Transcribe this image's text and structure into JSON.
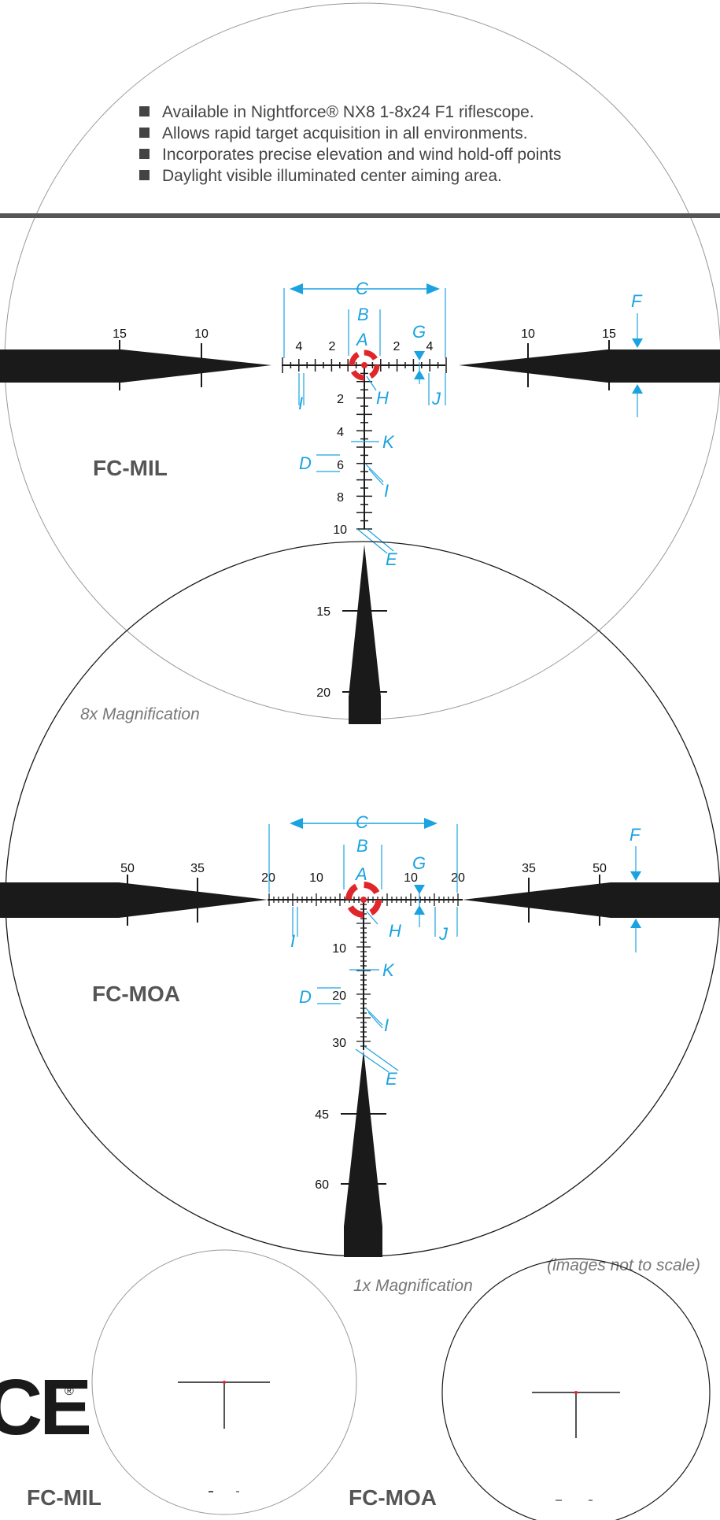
{
  "colors": {
    "accent": "#1aa3e0",
    "reticle": "#1a1a1a",
    "center": "#e0262a",
    "title": "#555555"
  },
  "features": [
    "Available in Nightforce® NX8 1-8x24 F1 riflescope.",
    "Allows rapid target acquisition in all environments.",
    "Incorporates precise elevation and wind hold-off points",
    "Daylight visible illuminated center aiming area."
  ],
  "mil": {
    "name": "FC-MIL",
    "h_left": [
      "15",
      "10",
      "4",
      "2"
    ],
    "h_right": [
      "2",
      "4",
      "10",
      "15"
    ],
    "v": [
      "2",
      "4",
      "6",
      "8",
      "10",
      "15",
      "20"
    ],
    "callouts": [
      "A",
      "B",
      "C",
      "D",
      "E",
      "F",
      "G",
      "H",
      "I",
      "I",
      "J",
      "K"
    ]
  },
  "moa": {
    "name": "FC-MOA",
    "h_left": [
      "50",
      "35",
      "20",
      "10"
    ],
    "h_right": [
      "10",
      "20",
      "35",
      "50"
    ],
    "v": [
      "10",
      "20",
      "30",
      "45",
      "60"
    ],
    "callouts": [
      "A",
      "B",
      "C",
      "D",
      "E",
      "F",
      "G",
      "H",
      "I",
      "I",
      "J",
      "K"
    ]
  },
  "mag8": "8x Magnification",
  "mag1": "1x Magnification",
  "note": "(images not to scale)",
  "brand_fragment": "CE",
  "bottom_titles": [
    "FC-MIL",
    "FC-MOA"
  ]
}
